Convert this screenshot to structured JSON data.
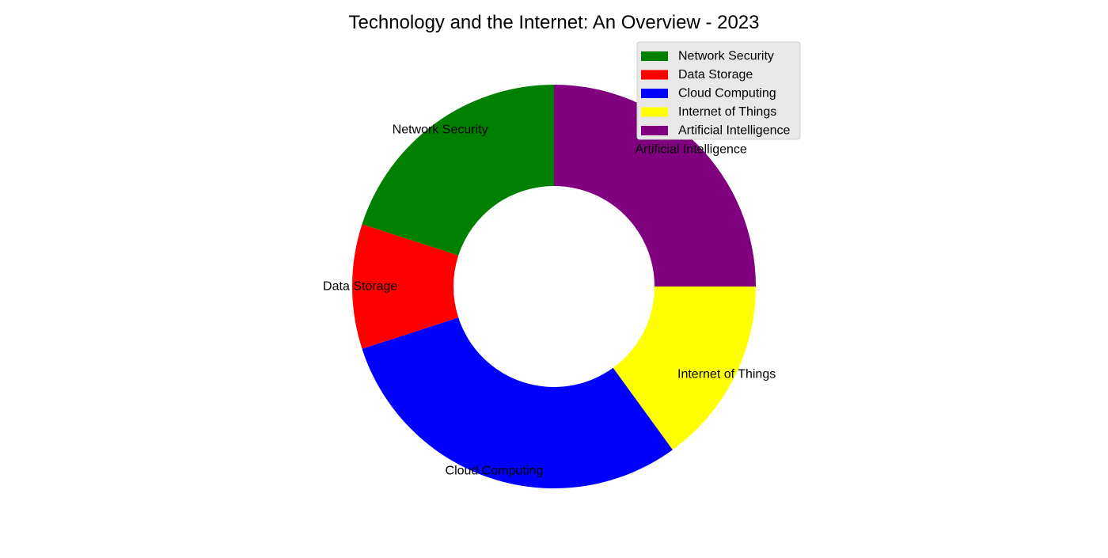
{
  "chart_data": {
    "type": "pie",
    "title": "Technology and the Internet: An Overview - 2023",
    "donut": true,
    "start": "top, clockwise",
    "legend_position": "top-right",
    "slices": [
      {
        "label": "Artificial Intelligence",
        "value": 25,
        "color": "#800080"
      },
      {
        "label": "Internet of Things",
        "value": 15,
        "color": "#ffff00"
      },
      {
        "label": "Cloud Computing",
        "value": 30,
        "color": "#0000ff"
      },
      {
        "label": "Data Storage",
        "value": 10,
        "color": "#ff0000"
      },
      {
        "label": "Network Security",
        "value": 20,
        "color": "#008000"
      }
    ],
    "legend": [
      {
        "label": "Network Security",
        "color": "#008000"
      },
      {
        "label": "Data Storage",
        "color": "#ff0000"
      },
      {
        "label": "Cloud Computing",
        "color": "#0000ff"
      },
      {
        "label": "Internet of Things",
        "color": "#ffff00"
      },
      {
        "label": "Artificial Intelligence",
        "color": "#800080"
      }
    ]
  }
}
